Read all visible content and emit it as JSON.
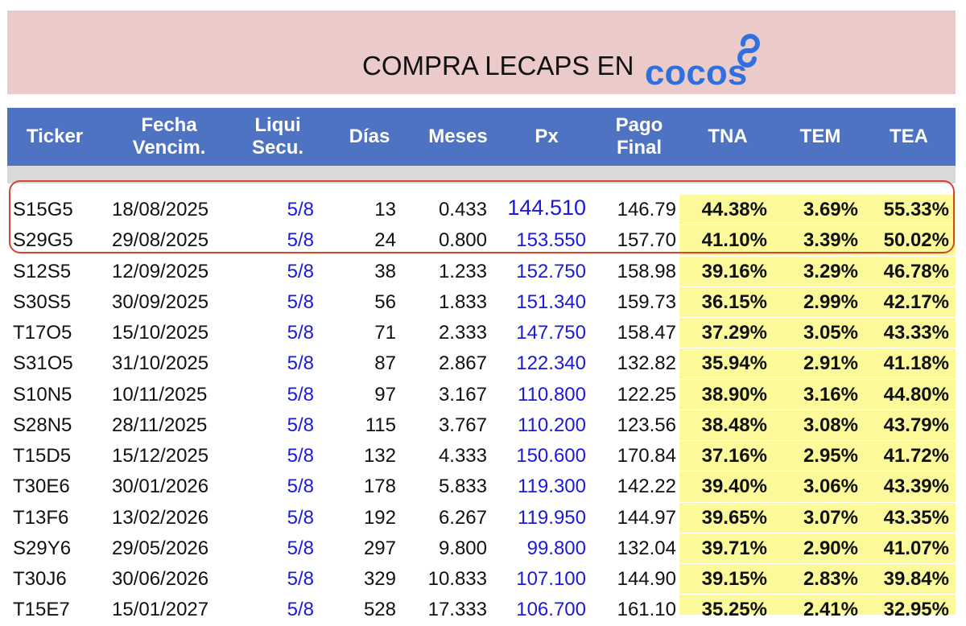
{
  "banner": {
    "title": "COMPRA LECAPS EN",
    "logo_text": "cocos",
    "logo_color": "#2f6fde",
    "background": "#ebcaca"
  },
  "table": {
    "header_background": "#4f73c3",
    "highlight_color": "#fbf99a",
    "headers": {
      "ticker": "Ticker",
      "fecha_1": "Fecha",
      "fecha_2": "Vencim.",
      "liqui_1": "Liqui",
      "liqui_2": "Secu.",
      "dias": "Días",
      "meses": "Meses",
      "px": "Px",
      "pago_1": "Pago",
      "pago_2": "Final",
      "tna": "TNA",
      "tem": "TEM",
      "tea": "TEA"
    },
    "rows": [
      {
        "ticker": "S15G5",
        "fecha": "18/08/2025",
        "liq": "5/8",
        "dias": "13",
        "meses": "0.433",
        "px": "144.510",
        "pago": "146.79",
        "tna": "44.38%",
        "tem": "3.69%",
        "tea": "55.33%"
      },
      {
        "ticker": "S29G5",
        "fecha": "29/08/2025",
        "liq": "5/8",
        "dias": "24",
        "meses": "0.800",
        "px": "153.550",
        "pago": "157.70",
        "tna": "41.10%",
        "tem": "3.39%",
        "tea": "50.02%"
      },
      {
        "ticker": "S12S5",
        "fecha": "12/09/2025",
        "liq": "5/8",
        "dias": "38",
        "meses": "1.233",
        "px": "152.750",
        "pago": "158.98",
        "tna": "39.16%",
        "tem": "3.29%",
        "tea": "46.78%"
      },
      {
        "ticker": "S30S5",
        "fecha": "30/09/2025",
        "liq": "5/8",
        "dias": "56",
        "meses": "1.833",
        "px": "151.340",
        "pago": "159.73",
        "tna": "36.15%",
        "tem": "2.99%",
        "tea": "42.17%"
      },
      {
        "ticker": "T17O5",
        "fecha": "15/10/2025",
        "liq": "5/8",
        "dias": "71",
        "meses": "2.333",
        "px": "147.750",
        "pago": "158.47",
        "tna": "37.29%",
        "tem": "3.05%",
        "tea": "43.33%"
      },
      {
        "ticker": "S31O5",
        "fecha": "31/10/2025",
        "liq": "5/8",
        "dias": "87",
        "meses": "2.867",
        "px": "122.340",
        "pago": "132.82",
        "tna": "35.94%",
        "tem": "2.91%",
        "tea": "41.18%"
      },
      {
        "ticker": "S10N5",
        "fecha": "10/11/2025",
        "liq": "5/8",
        "dias": "97",
        "meses": "3.167",
        "px": "110.800",
        "pago": "122.25",
        "tna": "38.90%",
        "tem": "3.16%",
        "tea": "44.80%"
      },
      {
        "ticker": "S28N5",
        "fecha": "28/11/2025",
        "liq": "5/8",
        "dias": "115",
        "meses": "3.767",
        "px": "110.200",
        "pago": "123.56",
        "tna": "38.48%",
        "tem": "3.08%",
        "tea": "43.79%"
      },
      {
        "ticker": "T15D5",
        "fecha": "15/12/2025",
        "liq": "5/8",
        "dias": "132",
        "meses": "4.333",
        "px": "150.600",
        "pago": "170.84",
        "tna": "37.16%",
        "tem": "2.95%",
        "tea": "41.72%"
      },
      {
        "ticker": "T30E6",
        "fecha": "30/01/2026",
        "liq": "5/8",
        "dias": "178",
        "meses": "5.833",
        "px": "119.300",
        "pago": "142.22",
        "tna": "39.40%",
        "tem": "3.06%",
        "tea": "43.39%"
      },
      {
        "ticker": "T13F6",
        "fecha": "13/02/2026",
        "liq": "5/8",
        "dias": "192",
        "meses": "6.267",
        "px": "119.950",
        "pago": "144.97",
        "tna": "39.65%",
        "tem": "3.07%",
        "tea": "43.35%"
      },
      {
        "ticker": "S29Y6",
        "fecha": "29/05/2026",
        "liq": "5/8",
        "dias": "297",
        "meses": "9.800",
        "px": "99.800",
        "pago": "132.04",
        "tna": "39.71%",
        "tem": "2.90%",
        "tea": "41.07%"
      },
      {
        "ticker": "T30J6",
        "fecha": "30/06/2026",
        "liq": "5/8",
        "dias": "329",
        "meses": "10.833",
        "px": "107.100",
        "pago": "144.90",
        "tna": "39.15%",
        "tem": "2.83%",
        "tea": "39.84%"
      },
      {
        "ticker": "T15E7",
        "fecha": "15/01/2027",
        "liq": "5/8",
        "dias": "528",
        "meses": "17.333",
        "px": "106.700",
        "pago": "161.10",
        "tna": "35.25%",
        "tem": "2.41%",
        "tea": "32.95%"
      }
    ]
  }
}
